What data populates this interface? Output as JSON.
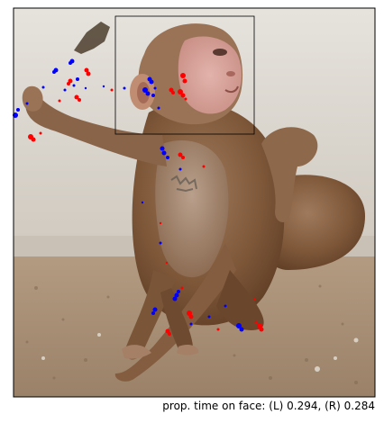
{
  "figure": {
    "caption": "prop. time on face: (L) 0.294, (R) 0.284",
    "image_subject": "rhesus-macaque-photo",
    "face_box": "face-region-box",
    "colors": {
      "left_eye_gaze": "#0000ff",
      "right_eye_gaze": "#ff0000",
      "wall_top": "#e3e0da",
      "wall_mid": "#d7d2ca",
      "floor": "#a38b72",
      "fur_dark": "#6e4a2f",
      "fur_light": "#b08d70",
      "face": "#d9a39b"
    }
  }
}
